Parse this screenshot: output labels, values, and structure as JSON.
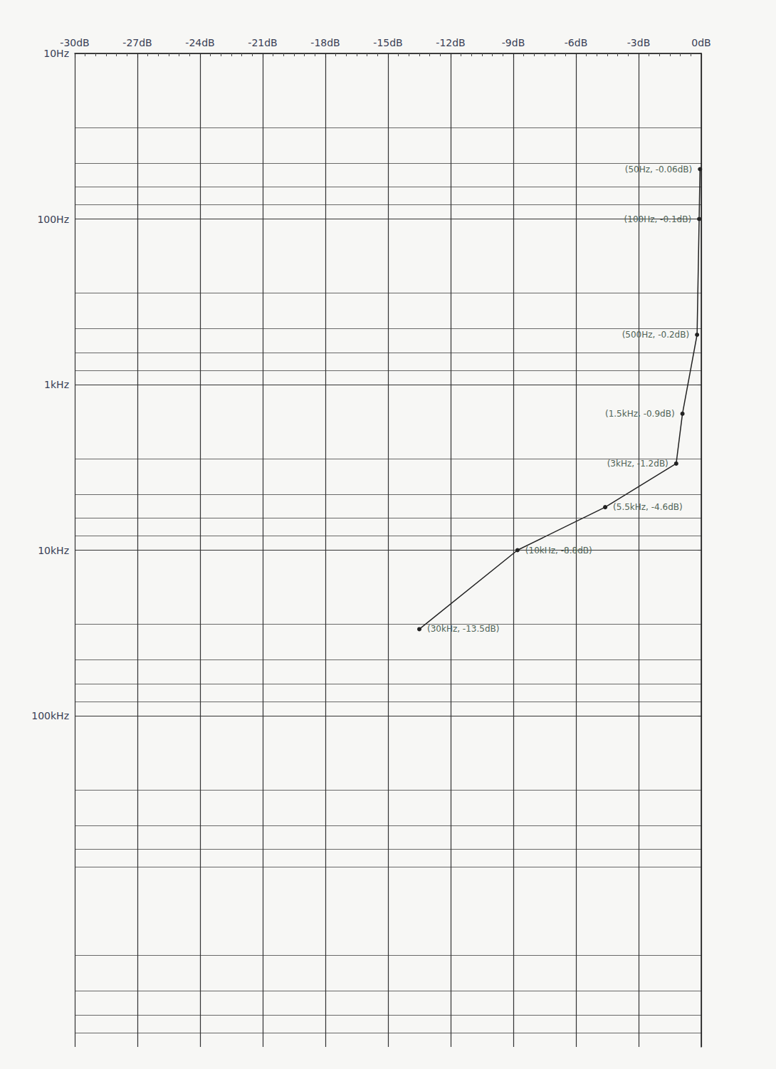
{
  "chart_data": {
    "type": "line",
    "log": "x",
    "grid": true,
    "marker": "circle",
    "color": "#222222",
    "x": [
      50,
      100,
      500,
      1500,
      3000,
      5500,
      10000,
      30000
    ],
    "values": [
      -0.06,
      -0.1,
      -0.2,
      -0.9,
      -1.2,
      -4.6,
      -8.8,
      -13.5
    ],
    "value_labels": [
      "(50Hz, -0.06dB)",
      "(100Hz, -0.1dB)",
      "(500Hz, -0.2dB)",
      "(1.5kHz, -0.9dB)",
      "(3kHz, -1.2dB)",
      "(5.5kHz, -4.6dB)",
      "(10kHz, -8.8dB)",
      "(30kHz, -13.5dB)"
    ],
    "xlim": [
      10,
      10000000
    ],
    "xticks": [
      {
        "value": 10,
        "label": "10Hz"
      },
      {
        "value": 100,
        "label": "100Hz"
      },
      {
        "value": 1000,
        "label": "1kHz"
      },
      {
        "value": 10000,
        "label": "10kHz"
      },
      {
        "value": 100000,
        "label": "100kHz"
      }
    ],
    "ylim": [
      -30,
      0
    ],
    "yticks": [
      {
        "value": -30,
        "label": "-30dB"
      },
      {
        "value": -27,
        "label": "-27dB"
      },
      {
        "value": -24,
        "label": "-24dB"
      },
      {
        "value": -21,
        "label": "-21dB"
      },
      {
        "value": -18,
        "label": "-18dB"
      },
      {
        "value": -15,
        "label": "-15dB"
      },
      {
        "value": -12,
        "label": "-12dB"
      },
      {
        "value": -9,
        "label": "-9dB"
      },
      {
        "value": -6,
        "label": "-6dB"
      },
      {
        "value": -3,
        "label": "-3dB"
      },
      {
        "value": 0,
        "label": "0dB"
      }
    ]
  }
}
